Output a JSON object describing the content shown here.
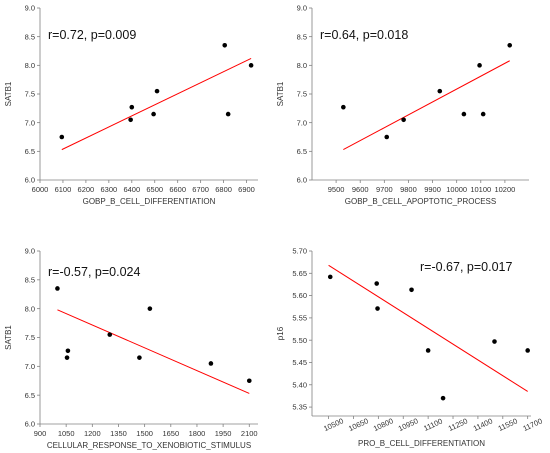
{
  "chart_data": [
    {
      "type": "scatter",
      "title": "",
      "annotation": "r=0.72, p=0.009",
      "xlabel": "GOBP_B_CELL_DIFFERENTIATION",
      "ylabel": "SATB1",
      "xlim": [
        6000,
        6950
      ],
      "ylim": [
        6.0,
        9.0
      ],
      "xticks": [
        6000,
        6100,
        6200,
        6300,
        6400,
        6500,
        6600,
        6700,
        6800,
        6900
      ],
      "xtick_labels": [
        "6000",
        "6100",
        "6200",
        "6300",
        "6400",
        "6500",
        "6600",
        "6700",
        "6800",
        "6900"
      ],
      "yticks": [
        6.0,
        6.5,
        7.0,
        7.5,
        8.0,
        8.5,
        9.0
      ],
      "ytick_labels": [
        "6.0",
        "6.5",
        "7.0",
        "7.5",
        "8.0",
        "8.5",
        "9.0"
      ],
      "x": [
        6095,
        6395,
        6400,
        6495,
        6510,
        6805,
        6820,
        6920
      ],
      "y": [
        6.75,
        7.05,
        7.27,
        7.15,
        7.55,
        8.35,
        7.15,
        8.0
      ],
      "fit_line": {
        "x": [
          6095,
          6920
        ],
        "y": [
          6.53,
          8.12
        ]
      },
      "line_color": "#ff0000",
      "point_color": "#000000"
    },
    {
      "type": "scatter",
      "title": "",
      "annotation": "r=0.64, p=0.018",
      "xlabel": "GOBP_B_CELL_APOPTOTIC_PROCESS",
      "ylabel": "SATB1",
      "xlim": [
        9400,
        10300
      ],
      "ylim": [
        6.0,
        9.0
      ],
      "xticks": [
        9500,
        9600,
        9700,
        9800,
        9900,
        10000,
        10100,
        10200
      ],
      "xtick_labels": [
        "9500",
        "9600",
        "9700",
        "9800",
        "9900",
        "10000",
        "10100",
        "10200"
      ],
      "yticks": [
        6.0,
        6.5,
        7.0,
        7.5,
        8.0,
        8.5,
        9.0
      ],
      "ytick_labels": [
        "6.0",
        "6.5",
        "7.0",
        "7.5",
        "8.0",
        "8.5",
        "9.0"
      ],
      "x": [
        9530,
        9710,
        9780,
        9930,
        10030,
        10095,
        10110,
        10220
      ],
      "y": [
        7.27,
        6.75,
        7.05,
        7.55,
        7.15,
        8.0,
        7.15,
        8.35
      ],
      "fit_line": {
        "x": [
          9530,
          10220
        ],
        "y": [
          6.53,
          8.08
        ]
      },
      "line_color": "#ff0000",
      "point_color": "#000000"
    },
    {
      "type": "scatter",
      "title": "",
      "annotation": "r=-0.57, p=0.024",
      "xlabel": "CELLULAR_RESPONSE_TO_XENOBIOTIC_STIMULUS",
      "ylabel": "SATB1",
      "xlim": [
        900,
        2150
      ],
      "ylim": [
        6.0,
        9.0
      ],
      "xticks": [
        900,
        1050,
        1200,
        1350,
        1500,
        1650,
        1800,
        1950,
        2100
      ],
      "xtick_labels": [
        "900",
        "1050",
        "1200",
        "1350",
        "1500",
        "1650",
        "1800",
        "1950",
        "2100"
      ],
      "yticks": [
        6.0,
        6.5,
        7.0,
        7.5,
        8.0,
        8.5,
        9.0
      ],
      "ytick_labels": [
        "6.0",
        "6.5",
        "7.0",
        "7.5",
        "8.0",
        "8.5",
        "9.0"
      ],
      "x": [
        1000,
        1055,
        1060,
        1300,
        1470,
        1530,
        1880,
        2100
      ],
      "y": [
        8.35,
        7.15,
        7.27,
        7.55,
        7.15,
        8.0,
        7.05,
        6.75
      ],
      "fit_line": {
        "x": [
          1000,
          2100
        ],
        "y": [
          7.98,
          6.53
        ]
      },
      "line_color": "#ff0000",
      "point_color": "#000000"
    },
    {
      "type": "scatter",
      "title": "",
      "annotation": "r=-0.67, p=0.017",
      "xlabel": "PRO_B_CELL_DIFFERENTIATION",
      "ylabel": "p16",
      "xlim": [
        10400,
        11720
      ],
      "ylim": [
        5.33,
        5.7
      ],
      "xticks": [
        10500,
        10650,
        10800,
        10950,
        11100,
        11250,
        11400,
        11550,
        11700
      ],
      "xtick_labels": [
        "10500",
        "10650",
        "10800",
        "10950",
        "11100",
        "11250",
        "11400",
        "11550",
        "11700"
      ],
      "yticks": [
        5.35,
        5.4,
        5.45,
        5.5,
        5.55,
        5.6,
        5.65,
        5.7
      ],
      "ytick_labels": [
        "5.35",
        "5.40",
        "5.45",
        "5.50",
        "5.55",
        "5.60",
        "5.65",
        "5.70"
      ],
      "x": [
        10510,
        10790,
        10795,
        11000,
        11100,
        11190,
        11500,
        11700
      ],
      "y": [
        5.642,
        5.627,
        5.571,
        5.613,
        5.477,
        5.37,
        5.497,
        5.477
      ],
      "fit_line": {
        "x": [
          10500,
          11700
        ],
        "y": [
          5.668,
          5.385
        ]
      },
      "line_color": "#ff0000",
      "point_color": "#000000"
    }
  ]
}
